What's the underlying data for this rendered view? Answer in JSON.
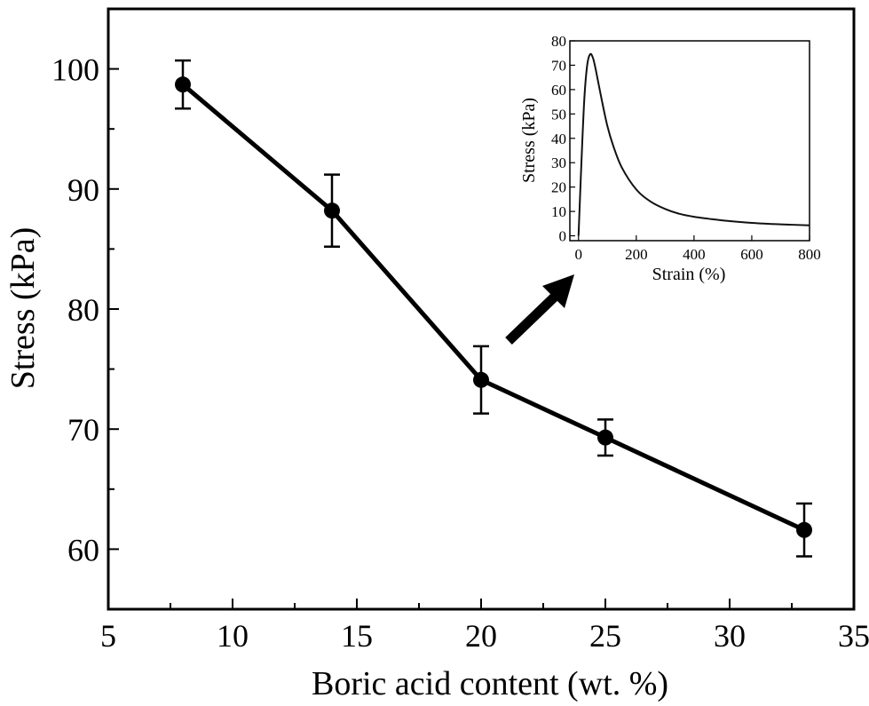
{
  "chart_data": [
    {
      "type": "line",
      "xlabel": "Boric acid content (wt. %)",
      "ylabel": "Stress (kPa)",
      "xlim": [
        5,
        35
      ],
      "ylim": [
        55,
        105
      ],
      "x_ticks": [
        "5",
        "10",
        "15",
        "20",
        "25",
        "30",
        "35"
      ],
      "y_ticks": [
        "60",
        "70",
        "80",
        "90",
        "100"
      ],
      "grid": false,
      "points": [
        {
          "x": 8,
          "y": 98.7,
          "err": 2.0
        },
        {
          "x": 14,
          "y": 88.2,
          "err": 3.0
        },
        {
          "x": 20,
          "y": 74.1,
          "err": 2.8
        },
        {
          "x": 25,
          "y": 69.3,
          "err": 1.5
        },
        {
          "x": 33,
          "y": 61.6,
          "err": 2.2
        }
      ],
      "marker_color": "#000000",
      "line_color": "#000000"
    },
    {
      "type": "line",
      "position": "inset, top-right",
      "xlabel": "Strain (%)",
      "ylabel": "Stress (kPa)",
      "xlim": [
        -30,
        800
      ],
      "ylim": [
        -2,
        80
      ],
      "x_ticks": [
        "0",
        "200",
        "400",
        "600",
        "800"
      ],
      "y_ticks": [
        "0",
        "10",
        "20",
        "30",
        "40",
        "50",
        "60",
        "70",
        "80"
      ],
      "grid": false,
      "x": [
        0,
        10,
        20,
        30,
        40,
        50,
        60,
        80,
        100,
        120,
        150,
        200,
        250,
        300,
        350,
        400,
        450,
        500,
        600,
        700,
        800
      ],
      "y": [
        0,
        30,
        56,
        70,
        74.5,
        73,
        68,
        56,
        45,
        37,
        28,
        19,
        14,
        11,
        9,
        7.8,
        7,
        6.3,
        5.3,
        4.7,
        4.3
      ]
    }
  ],
  "annotation": {
    "arrow": "points from the 20 wt.% data point to the inset"
  }
}
